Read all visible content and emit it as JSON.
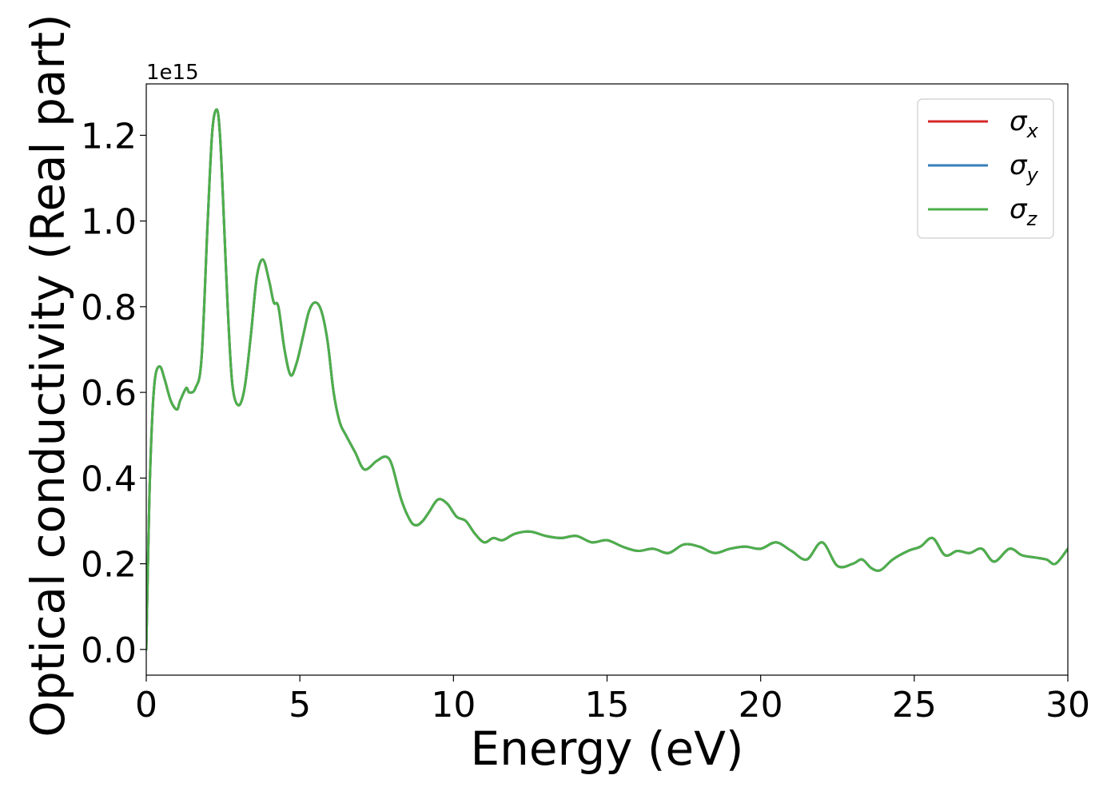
{
  "chart_data": {
    "type": "line",
    "xlabel": "Energy (eV)",
    "ylabel": "Optical conductivity (Real part)",
    "y_offset_label": "1e15",
    "y_scale_factor": 1000000000000000.0,
    "xlim": [
      0,
      30
    ],
    "ylim": [
      -0.06,
      1.32
    ],
    "xticks": [
      0,
      5,
      10,
      15,
      20,
      25,
      30
    ],
    "xtick_labels": [
      "0",
      "5",
      "10",
      "15",
      "20",
      "25",
      "30"
    ],
    "yticks": [
      0.0,
      0.2,
      0.4,
      0.6,
      0.8,
      1.0,
      1.2
    ],
    "ytick_labels": [
      "0.0",
      "0.2",
      "0.4",
      "0.6",
      "0.8",
      "1.0",
      "1.2"
    ],
    "grid": false,
    "legend_position": "top-right",
    "x": [
      0,
      0.1,
      0.2,
      0.3,
      0.45,
      0.6,
      0.8,
      1.0,
      1.1,
      1.3,
      1.4,
      1.6,
      1.8,
      2.0,
      2.15,
      2.3,
      2.4,
      2.5,
      2.65,
      2.8,
      3.0,
      3.2,
      3.4,
      3.6,
      3.8,
      4.0,
      4.15,
      4.3,
      4.5,
      4.7,
      4.9,
      5.1,
      5.3,
      5.5,
      5.7,
      5.9,
      6.1,
      6.3,
      6.5,
      6.8,
      7.1,
      7.5,
      7.8,
      8.0,
      8.3,
      8.6,
      8.8,
      9.0,
      9.2,
      9.5,
      9.8,
      10.1,
      10.4,
      10.7,
      11.0,
      11.3,
      11.6,
      12.0,
      12.5,
      13.0,
      13.5,
      14.0,
      14.5,
      15.0,
      15.5,
      16.0,
      16.5,
      17.0,
      17.5,
      18.0,
      18.5,
      19.0,
      19.5,
      20.0,
      20.5,
      21.0,
      21.5,
      22.0,
      22.5,
      23.0,
      23.3,
      23.6,
      23.9,
      24.3,
      24.8,
      25.2,
      25.6,
      26.0,
      26.4,
      26.8,
      27.2,
      27.6,
      28.1,
      28.5,
      28.9,
      29.3,
      29.6,
      30.0
    ],
    "series": [
      {
        "name": "σx",
        "color": "#d62728",
        "values": [
          0.0,
          0.35,
          0.55,
          0.64,
          0.66,
          0.63,
          0.58,
          0.56,
          0.58,
          0.61,
          0.6,
          0.61,
          0.68,
          1.0,
          1.21,
          1.26,
          1.2,
          1.05,
          0.8,
          0.62,
          0.57,
          0.61,
          0.73,
          0.87,
          0.91,
          0.86,
          0.81,
          0.8,
          0.7,
          0.64,
          0.67,
          0.73,
          0.79,
          0.81,
          0.79,
          0.72,
          0.6,
          0.53,
          0.5,
          0.46,
          0.42,
          0.44,
          0.45,
          0.43,
          0.35,
          0.3,
          0.29,
          0.3,
          0.32,
          0.35,
          0.34,
          0.31,
          0.3,
          0.27,
          0.25,
          0.26,
          0.255,
          0.27,
          0.275,
          0.265,
          0.26,
          0.265,
          0.25,
          0.255,
          0.24,
          0.23,
          0.235,
          0.225,
          0.245,
          0.24,
          0.225,
          0.235,
          0.24,
          0.235,
          0.25,
          0.23,
          0.21,
          0.25,
          0.195,
          0.2,
          0.21,
          0.19,
          0.185,
          0.21,
          0.23,
          0.24,
          0.26,
          0.22,
          0.23,
          0.225,
          0.235,
          0.205,
          0.235,
          0.22,
          0.215,
          0.21,
          0.2,
          0.235
        ]
      },
      {
        "name": "σy",
        "color": "#377eb8",
        "values": [
          0.0,
          0.35,
          0.55,
          0.64,
          0.66,
          0.63,
          0.58,
          0.56,
          0.58,
          0.61,
          0.6,
          0.61,
          0.68,
          1.0,
          1.21,
          1.26,
          1.2,
          1.05,
          0.8,
          0.62,
          0.57,
          0.61,
          0.73,
          0.87,
          0.91,
          0.86,
          0.81,
          0.8,
          0.7,
          0.64,
          0.67,
          0.73,
          0.79,
          0.81,
          0.79,
          0.72,
          0.6,
          0.53,
          0.5,
          0.46,
          0.42,
          0.44,
          0.45,
          0.43,
          0.35,
          0.3,
          0.29,
          0.3,
          0.32,
          0.35,
          0.34,
          0.31,
          0.3,
          0.27,
          0.25,
          0.26,
          0.255,
          0.27,
          0.275,
          0.265,
          0.26,
          0.265,
          0.25,
          0.255,
          0.24,
          0.23,
          0.235,
          0.225,
          0.245,
          0.24,
          0.225,
          0.235,
          0.24,
          0.235,
          0.25,
          0.23,
          0.21,
          0.25,
          0.195,
          0.2,
          0.21,
          0.19,
          0.185,
          0.21,
          0.23,
          0.24,
          0.26,
          0.22,
          0.23,
          0.225,
          0.235,
          0.205,
          0.235,
          0.22,
          0.215,
          0.21,
          0.2,
          0.235
        ]
      },
      {
        "name": "σz",
        "color": "#4daf4a",
        "values": [
          0.0,
          0.35,
          0.55,
          0.64,
          0.66,
          0.63,
          0.58,
          0.56,
          0.58,
          0.61,
          0.6,
          0.61,
          0.68,
          1.0,
          1.21,
          1.26,
          1.2,
          1.05,
          0.8,
          0.62,
          0.57,
          0.61,
          0.73,
          0.87,
          0.91,
          0.86,
          0.81,
          0.8,
          0.7,
          0.64,
          0.67,
          0.73,
          0.79,
          0.81,
          0.79,
          0.72,
          0.6,
          0.53,
          0.5,
          0.46,
          0.42,
          0.44,
          0.45,
          0.43,
          0.35,
          0.3,
          0.29,
          0.3,
          0.32,
          0.35,
          0.34,
          0.31,
          0.3,
          0.27,
          0.25,
          0.26,
          0.255,
          0.27,
          0.275,
          0.265,
          0.26,
          0.265,
          0.25,
          0.255,
          0.24,
          0.23,
          0.235,
          0.225,
          0.245,
          0.24,
          0.225,
          0.235,
          0.24,
          0.235,
          0.25,
          0.23,
          0.21,
          0.25,
          0.195,
          0.2,
          0.21,
          0.19,
          0.185,
          0.21,
          0.23,
          0.24,
          0.26,
          0.22,
          0.23,
          0.225,
          0.235,
          0.205,
          0.235,
          0.22,
          0.215,
          0.21,
          0.2,
          0.235
        ]
      }
    ],
    "legend": {
      "entries": [
        {
          "symbol": "σ",
          "subscript": "x"
        },
        {
          "symbol": "σ",
          "subscript": "y"
        },
        {
          "symbol": "σ",
          "subscript": "z"
        }
      ]
    }
  }
}
